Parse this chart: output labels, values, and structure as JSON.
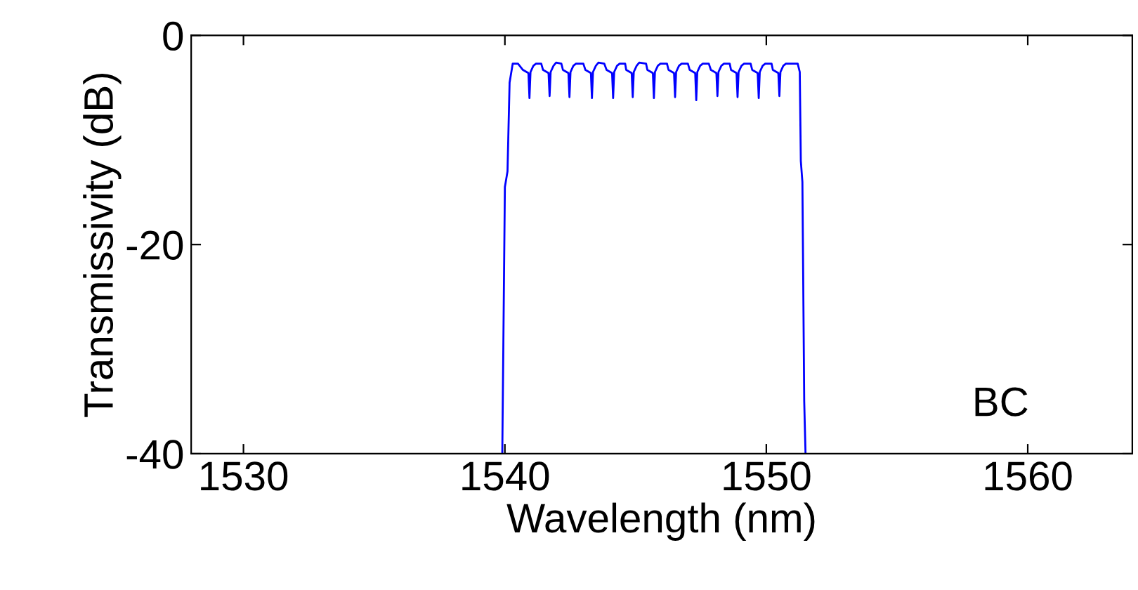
{
  "chart_data": {
    "type": "line",
    "xlabel": "Wavelength (nm)",
    "ylabel": "Transmissivity (dB)",
    "xlim": [
      1528,
      1564
    ],
    "xticks": [
      1530,
      1540,
      1550,
      1560
    ],
    "ylim": [
      -40,
      0
    ],
    "yticks": [
      -40,
      -20,
      0
    ],
    "grid": false,
    "marker": "none",
    "line_style": "solid",
    "annotations": [
      "BC"
    ],
    "series": [
      {
        "color": "#0000ff",
        "x": [
          1539.9,
          1540.0,
          1540.1,
          1540.18,
          1540.3,
          1540.5,
          1540.69,
          1540.9,
          1540.94,
          1540.98,
          1541.09,
          1541.19,
          1541.39,
          1541.46,
          1541.67,
          1541.71,
          1541.75,
          1541.86,
          1541.96,
          1542.16,
          1542.22,
          1542.43,
          1542.47,
          1542.51,
          1542.62,
          1542.72,
          1543.0,
          1543.08,
          1543.29,
          1543.33,
          1543.37,
          1543.48,
          1543.58,
          1543.8,
          1543.89,
          1544.1,
          1544.14,
          1544.18,
          1544.29,
          1544.39,
          1544.6,
          1544.64,
          1544.85,
          1544.89,
          1544.93,
          1545.04,
          1545.14,
          1545.4,
          1545.45,
          1545.66,
          1545.7,
          1545.74,
          1545.85,
          1545.95,
          1546.2,
          1546.26,
          1546.47,
          1546.51,
          1546.55,
          1546.66,
          1546.76,
          1547.0,
          1547.07,
          1547.28,
          1547.32,
          1547.36,
          1547.47,
          1547.57,
          1547.8,
          1547.88,
          1548.09,
          1548.13,
          1548.17,
          1548.28,
          1548.38,
          1548.6,
          1548.65,
          1548.86,
          1548.9,
          1548.94,
          1549.05,
          1549.15,
          1549.4,
          1549.46,
          1549.67,
          1549.71,
          1549.75,
          1549.86,
          1549.96,
          1550.2,
          1550.25,
          1550.46,
          1550.5,
          1550.54,
          1550.65,
          1550.75,
          1551.2,
          1551.28,
          1551.32,
          1551.38,
          1551.45,
          1551.5
        ],
        "values": [
          -40,
          -14.5,
          -13.0,
          -4.5,
          -2.7,
          -2.7,
          -3.3,
          -3.6,
          -6.0,
          -3.5,
          -2.9,
          -2.7,
          -2.7,
          -3.3,
          -3.6,
          -5.8,
          -3.5,
          -2.9,
          -2.6,
          -2.7,
          -3.3,
          -3.6,
          -5.9,
          -3.5,
          -2.9,
          -2.7,
          -2.7,
          -3.3,
          -3.6,
          -6.0,
          -3.5,
          -2.9,
          -2.6,
          -2.7,
          -3.3,
          -3.6,
          -6.0,
          -3.5,
          -2.9,
          -2.7,
          -2.7,
          -3.3,
          -3.6,
          -5.9,
          -3.5,
          -2.9,
          -2.6,
          -2.7,
          -3.3,
          -3.6,
          -6.0,
          -3.5,
          -2.9,
          -2.7,
          -2.7,
          -3.3,
          -3.6,
          -5.9,
          -3.5,
          -2.9,
          -2.7,
          -2.7,
          -3.3,
          -3.6,
          -6.2,
          -3.5,
          -2.9,
          -2.7,
          -2.7,
          -3.3,
          -3.6,
          -5.8,
          -3.5,
          -2.9,
          -2.7,
          -2.7,
          -3.3,
          -3.6,
          -5.9,
          -3.5,
          -2.9,
          -2.7,
          -2.7,
          -3.3,
          -3.6,
          -6.0,
          -3.5,
          -2.9,
          -2.7,
          -2.7,
          -3.3,
          -3.6,
          -5.8,
          -3.5,
          -2.9,
          -2.7,
          -2.7,
          -3.5,
          -12.0,
          -14.0,
          -35.0,
          -40
        ]
      }
    ]
  }
}
